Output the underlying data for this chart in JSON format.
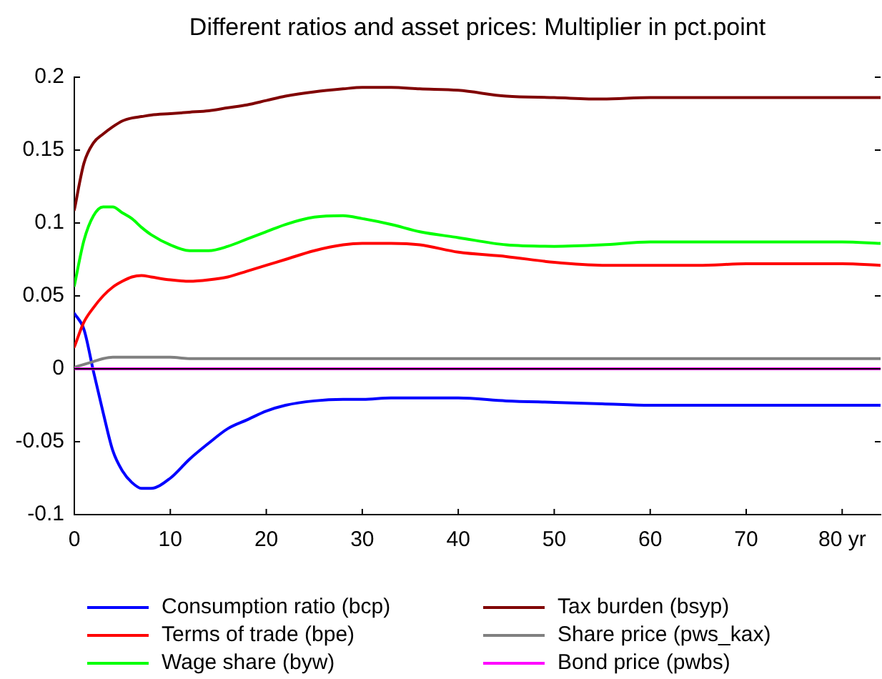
{
  "chart_data": {
    "type": "line",
    "title": "Different ratios and asset prices: Multiplier in pct.point",
    "x": [
      0,
      1,
      2,
      3,
      4,
      5,
      6,
      7,
      8,
      10,
      12,
      14,
      16,
      18,
      20,
      22,
      25,
      28,
      30,
      33,
      36,
      40,
      45,
      50,
      55,
      60,
      65,
      70,
      75,
      80,
      84
    ],
    "xlim": [
      0,
      84
    ],
    "xticks": [
      0,
      10,
      20,
      30,
      40,
      50,
      60,
      70,
      {
        "value": 80,
        "label": "80 yr"
      }
    ],
    "ylim": [
      -0.1,
      0.2
    ],
    "yticks": [
      -0.1,
      -0.05,
      0,
      0.05,
      0.1,
      0.15,
      0.2
    ],
    "grid": false,
    "legend": "bottom",
    "ref_lines": [
      {
        "axis": "y",
        "value": 0,
        "color": "#000000"
      }
    ],
    "series": [
      {
        "name": "Consumption ratio (bcp)",
        "color": "#0000ff",
        "values": [
          0.038,
          0.027,
          -0.002,
          -0.03,
          -0.056,
          -0.07,
          -0.078,
          -0.082,
          -0.082,
          -0.075,
          -0.062,
          -0.051,
          -0.041,
          -0.035,
          -0.029,
          -0.025,
          -0.022,
          -0.021,
          -0.021,
          -0.02,
          -0.02,
          -0.02,
          -0.022,
          -0.023,
          -0.024,
          -0.025,
          -0.025,
          -0.025,
          -0.025,
          -0.025,
          -0.025
        ]
      },
      {
        "name": "Terms of trade (bpe)",
        "color": "#ff0000",
        "values": [
          0.015,
          0.032,
          0.042,
          0.05,
          0.056,
          0.06,
          0.063,
          0.064,
          0.063,
          0.061,
          0.06,
          0.061,
          0.063,
          0.067,
          0.071,
          0.075,
          0.081,
          0.085,
          0.086,
          0.086,
          0.085,
          0.08,
          0.077,
          0.073,
          0.071,
          0.071,
          0.071,
          0.072,
          0.072,
          0.072,
          0.071
        ]
      },
      {
        "name": "Wage share (byw)",
        "color": "#00ff00",
        "values": [
          0.057,
          0.088,
          0.105,
          0.111,
          0.111,
          0.107,
          0.103,
          0.097,
          0.092,
          0.085,
          0.081,
          0.081,
          0.084,
          0.089,
          0.094,
          0.099,
          0.104,
          0.105,
          0.103,
          0.099,
          0.094,
          0.09,
          0.085,
          0.084,
          0.085,
          0.087,
          0.087,
          0.087,
          0.087,
          0.087,
          0.086
        ]
      },
      {
        "name": "Tax burden (bsyp)",
        "color": "#800000",
        "values": [
          0.109,
          0.141,
          0.155,
          0.161,
          0.166,
          0.17,
          0.172,
          0.173,
          0.174,
          0.175,
          0.176,
          0.177,
          0.179,
          0.181,
          0.184,
          0.187,
          0.19,
          0.192,
          0.193,
          0.193,
          0.192,
          0.191,
          0.187,
          0.186,
          0.185,
          0.186,
          0.186,
          0.186,
          0.186,
          0.186,
          0.186
        ]
      },
      {
        "name": "Share price (pws_kax)",
        "color": "#808080",
        "values": [
          0.001,
          0.003,
          0.005,
          0.007,
          0.008,
          0.008,
          0.008,
          0.008,
          0.008,
          0.008,
          0.007,
          0.007,
          0.007,
          0.007,
          0.007,
          0.007,
          0.007,
          0.007,
          0.007,
          0.007,
          0.007,
          0.007,
          0.007,
          0.007,
          0.007,
          0.007,
          0.007,
          0.007,
          0.007,
          0.007,
          0.007
        ]
      },
      {
        "name": "Bond price (pwbs)",
        "color": "#ff00ff",
        "values": [
          0,
          0,
          0,
          0,
          0,
          0,
          0,
          0,
          0,
          0,
          0,
          0,
          0,
          0,
          0,
          0,
          0,
          0,
          0,
          0,
          0,
          0,
          0,
          0,
          0,
          0,
          0,
          0,
          0,
          0,
          0
        ]
      }
    ]
  }
}
